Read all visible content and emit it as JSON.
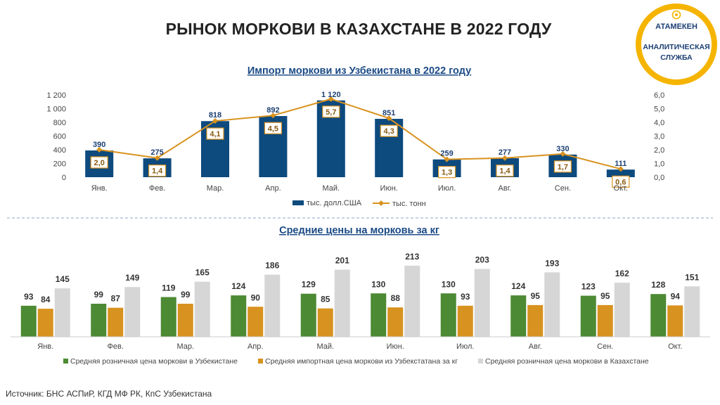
{
  "page": {
    "title": "РЫНОК МОРКОВИ В КАЗАХСТАНЕ В 2022 ГОДУ",
    "source": "Источник: БНС АСПиР, КГД МФ РК, КпС Узбекистана"
  },
  "logo": {
    "line1": "АТАМЕКЕН",
    "line2": "АНАЛИТИЧЕСКАЯ",
    "line3": "СЛУЖБА"
  },
  "colors": {
    "navy": "#0d4a7e",
    "orange": "#d8921f",
    "green": "#4c8a33",
    "gray": "#d6d6d6",
    "logo_ring": "#f5b400"
  },
  "chart_data": [
    {
      "type": "bar",
      "title": "Импорт моркови из Узбекистана в 2022 году",
      "categories": [
        "Янв.",
        "Фев.",
        "Мар.",
        "Апр.",
        "Май.",
        "Июн.",
        "Июл.",
        "Авг.",
        "Сен.",
        "Окт."
      ],
      "series": [
        {
          "name": "тыс. долл.США",
          "kind": "bar",
          "axis": "left",
          "values": [
            390,
            275,
            818,
            892,
            1120,
            851,
            259,
            277,
            330,
            111
          ],
          "labels": [
            "390",
            "275",
            "818",
            "892",
            "1 120",
            "851",
            "259",
            "277",
            "330",
            "111"
          ]
        },
        {
          "name": "тыс. тонн",
          "kind": "line",
          "axis": "right",
          "values": [
            2.0,
            1.4,
            4.1,
            4.5,
            5.7,
            4.3,
            1.3,
            1.4,
            1.7,
            0.6
          ],
          "labels": [
            "2,0",
            "1,4",
            "4,1",
            "4,5",
            "5,7",
            "4,3",
            "1,3",
            "1,4",
            "1,7",
            "0,6"
          ]
        }
      ],
      "ylim": [
        0,
        1200
      ],
      "y_ticks": [
        "0",
        "200",
        "400",
        "600",
        "800",
        "1 000",
        "1 200"
      ],
      "y2lim": [
        0,
        6
      ],
      "y2_ticks": [
        "0,0",
        "1,0",
        "2,0",
        "3,0",
        "4,0",
        "5,0",
        "6,0"
      ],
      "legend": "bottom",
      "grid": false
    },
    {
      "type": "bar",
      "title": "Средние цены на морковь за кг",
      "categories": [
        "Янв.",
        "Фев.",
        "Мар.",
        "Апр.",
        "Май.",
        "Июн.",
        "Июл.",
        "Авг.",
        "Сен.",
        "Окт."
      ],
      "series": [
        {
          "name": "Средняя розничная цена моркови в Узбекистане",
          "values": [
            93,
            99,
            119,
            124,
            129,
            130,
            130,
            124,
            123,
            128
          ]
        },
        {
          "name": "Средняя импортная цена моркови из Узбекстатана за кг",
          "values": [
            84,
            87,
            99,
            90,
            85,
            88,
            93,
            95,
            95,
            94
          ]
        },
        {
          "name": "Средняя розничная цена моркови в Казахстане",
          "values": [
            145,
            149,
            165,
            186,
            201,
            213,
            203,
            193,
            162,
            151
          ]
        }
      ],
      "legend": "bottom",
      "grid": false
    }
  ]
}
